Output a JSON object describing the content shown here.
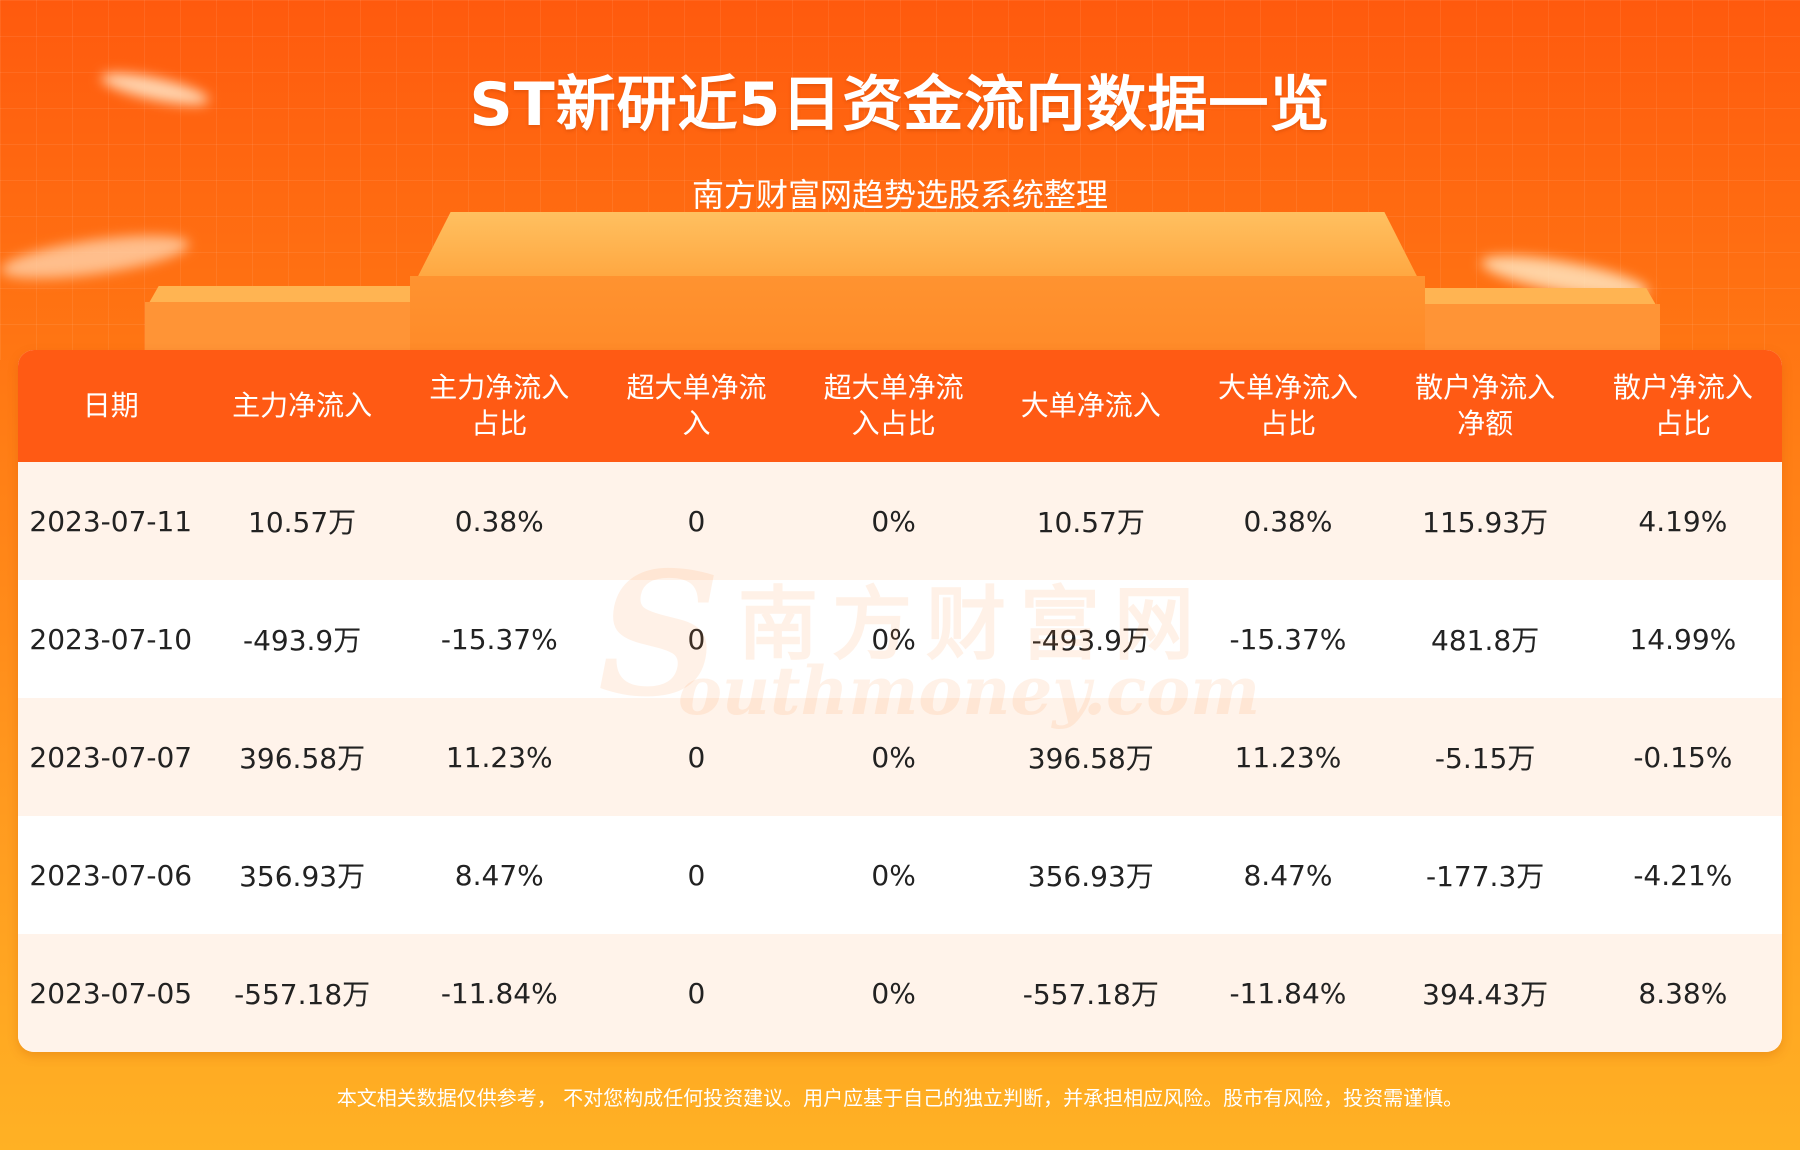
{
  "header": {
    "title": "ST新研近5日资金流向数据一览",
    "subtitle": "南方财富网趋势选股系统整理"
  },
  "watermark": {
    "cn": "南方财富网",
    "en": "outhmoney.com",
    "initial": "S"
  },
  "table": {
    "columns": [
      "日期",
      "主力净流入",
      "主力净流入\n占比",
      "超大单净流\n入",
      "超大单净流\n入占比",
      "大单净流入",
      "大单净流入\n占比",
      "散户净流入\n净额",
      "散户净流入\n占比"
    ],
    "rows": [
      [
        "2023-07-11",
        "10.57万",
        "0.38%",
        "0",
        "0%",
        "10.57万",
        "0.38%",
        "115.93万",
        "4.19%"
      ],
      [
        "2023-07-10",
        "-493.9万",
        "-15.37%",
        "0",
        "0%",
        "-493.9万",
        "-15.37%",
        "481.8万",
        "14.99%"
      ],
      [
        "2023-07-07",
        "396.58万",
        "11.23%",
        "0",
        "0%",
        "396.58万",
        "11.23%",
        "-5.15万",
        "-0.15%"
      ],
      [
        "2023-07-06",
        "356.93万",
        "8.47%",
        "0",
        "0%",
        "356.93万",
        "8.47%",
        "-177.3万",
        "-4.21%"
      ],
      [
        "2023-07-05",
        "-557.18万",
        "-11.84%",
        "0",
        "0%",
        "-557.18万",
        "-11.84%",
        "394.43万",
        "8.38%"
      ]
    ]
  },
  "footer": {
    "disclaimer": "本文相关数据仅供参考， 不对您构成任何投资建议。用户应基于自己的独立判断，并承担相应风险。股市有风险，投资需谨慎。"
  },
  "colors": {
    "header_bg": "#ff5a14",
    "row_alt": "#fff3ea",
    "page_gradient_top": "#ff5a0e",
    "page_gradient_bottom": "#ffb124"
  }
}
